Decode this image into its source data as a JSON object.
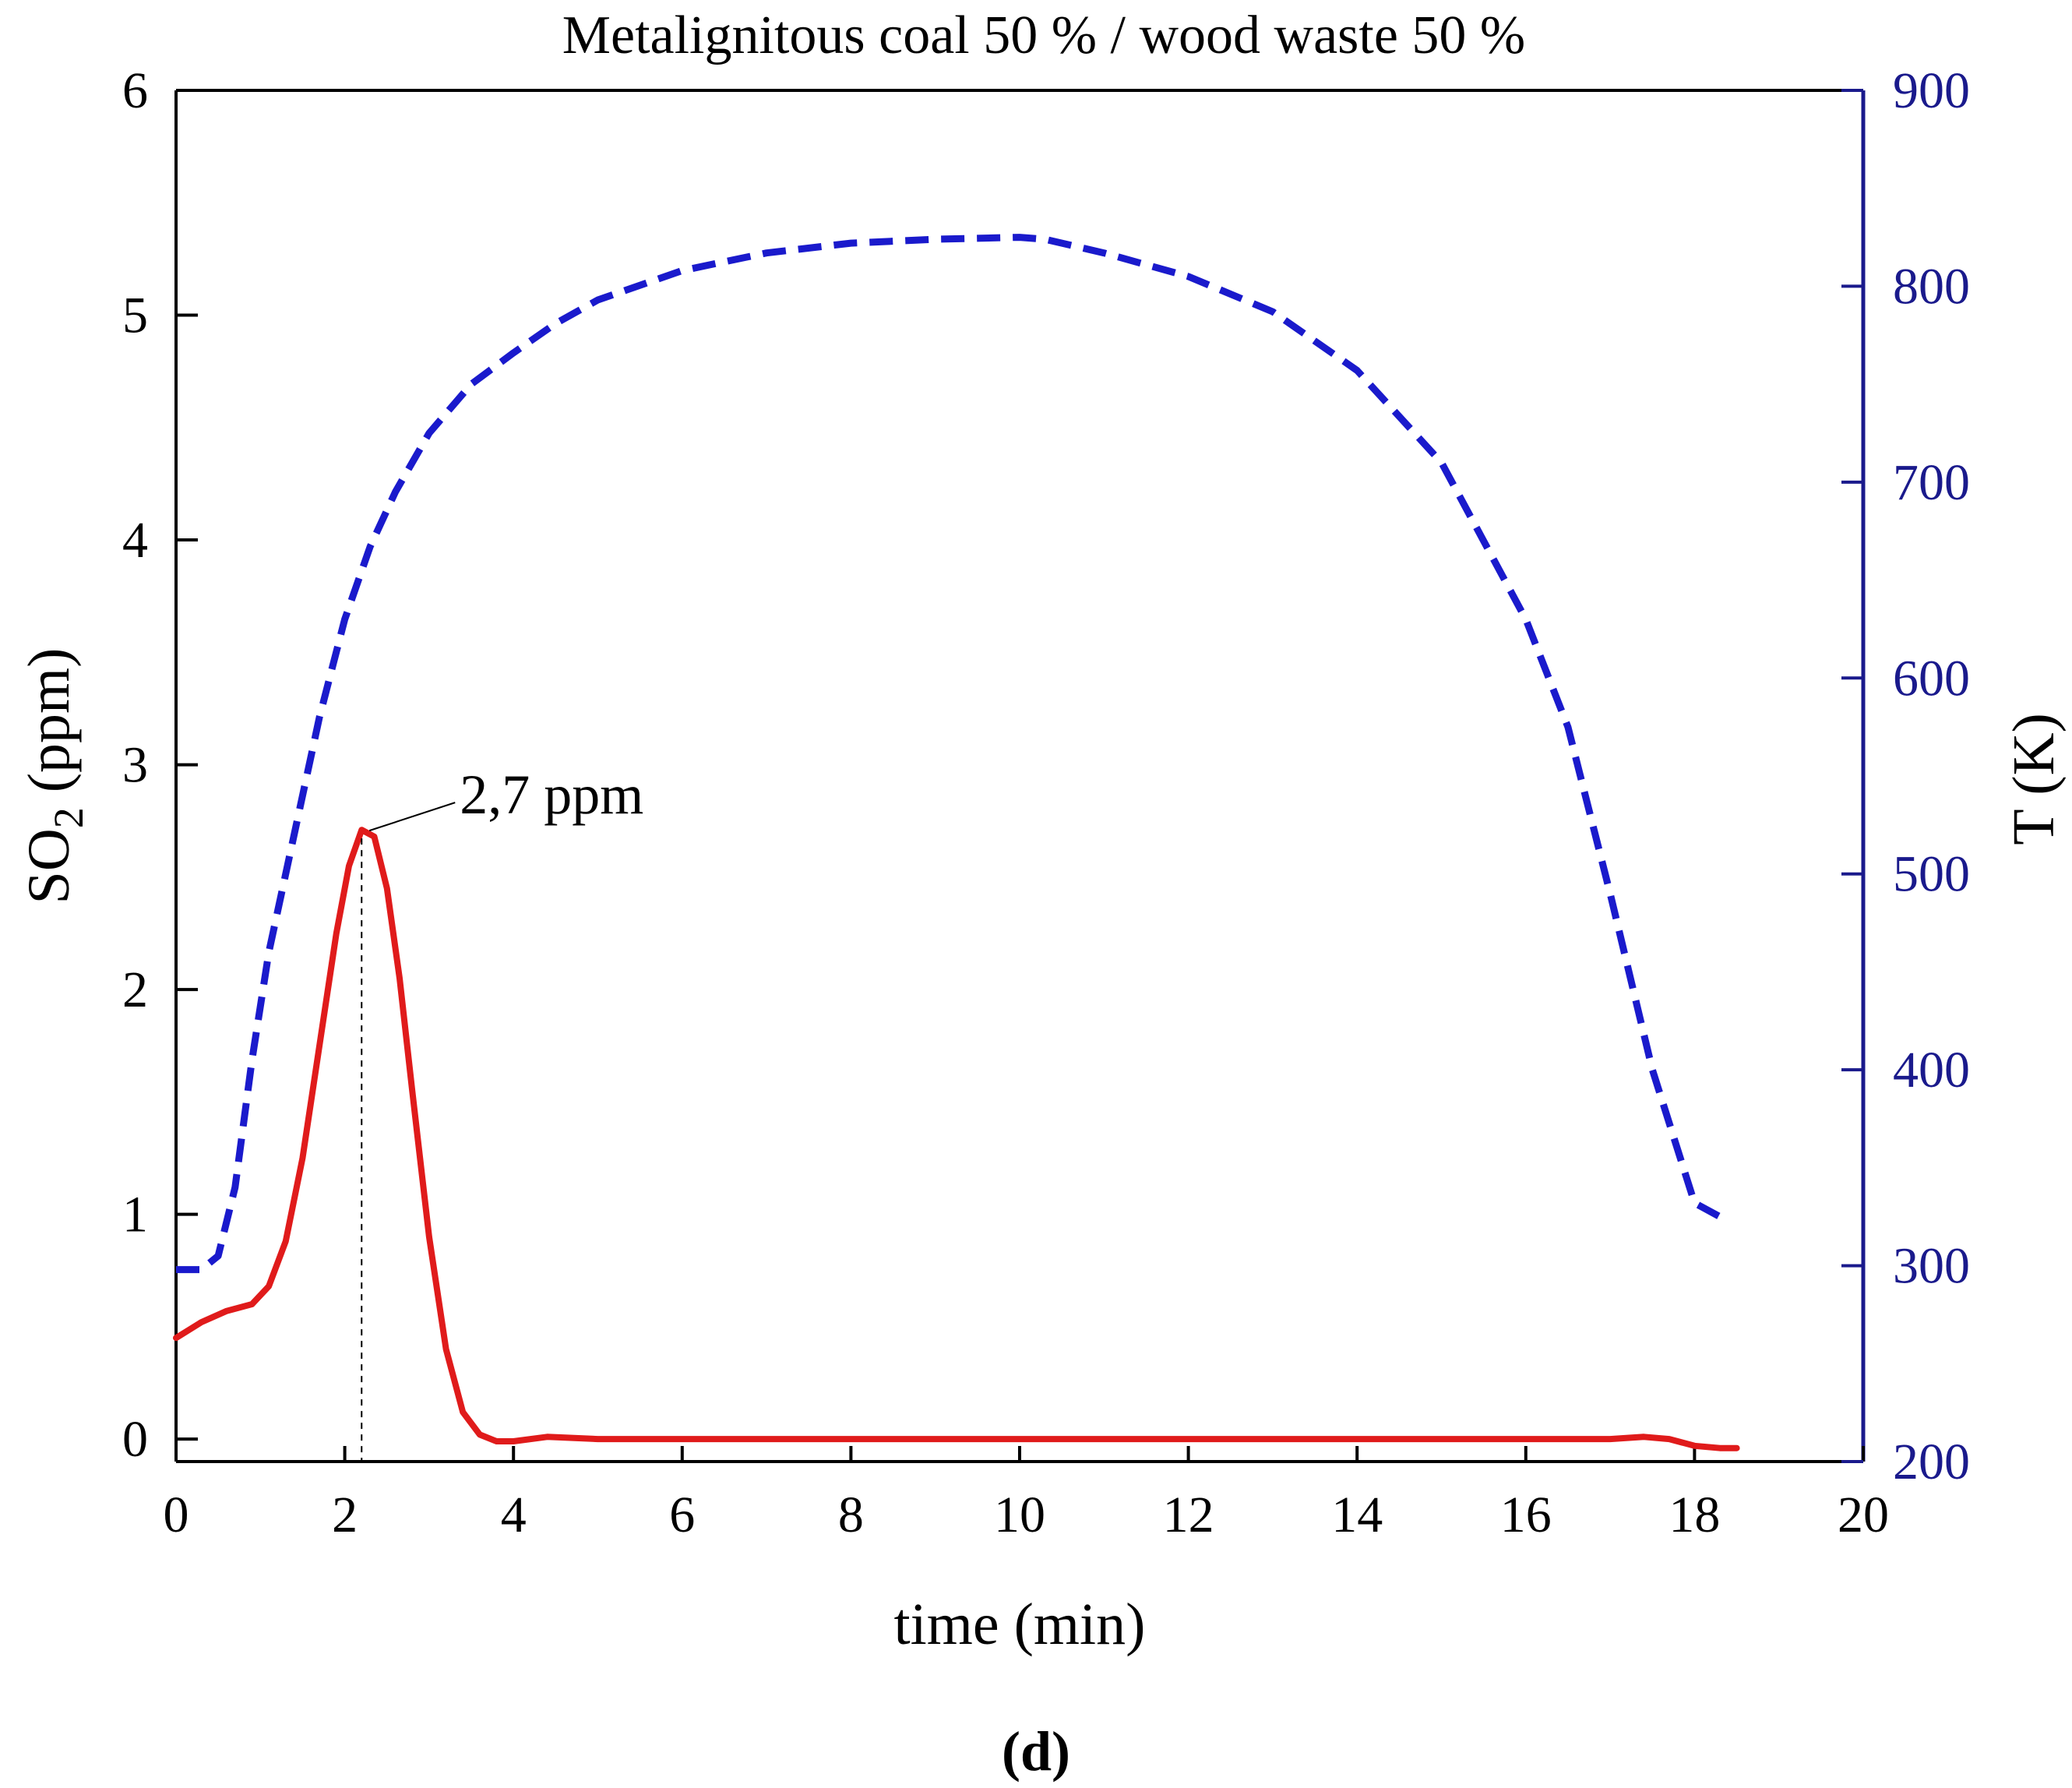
{
  "chart_data": {
    "type": "line",
    "title": "Metalignitous coal 50 % / wood waste 50 %",
    "xlabel": "time (min)",
    "ylabel_left": {
      "base": "SO",
      "sub": "2",
      "rest": " (ppm)"
    },
    "ylabel_right": "T (K)",
    "panel_label": "(d)",
    "xlim": [
      0,
      20
    ],
    "ylim_left": [
      -0.1,
      6
    ],
    "ylim_right": [
      200,
      900
    ],
    "xticks": [
      "0",
      "2",
      "4",
      "6",
      "8",
      "10",
      "12",
      "14",
      "16",
      "18",
      "20"
    ],
    "yticks_left": [
      "0",
      "1",
      "2",
      "3",
      "4",
      "5",
      "6"
    ],
    "yticks_right": [
      "200",
      "300",
      "400",
      "500",
      "600",
      "700",
      "800",
      "900"
    ],
    "grid": false,
    "colors": {
      "so2": "#e01b1b",
      "temperature": "#1a1acc",
      "right_axis": "#1a1a8c"
    },
    "annotation": {
      "text": "2,7 ppm",
      "x": 2.2,
      "y": 2.7
    },
    "series": [
      {
        "axis": "left",
        "style": "solid",
        "x": [
          0,
          0.3,
          0.6,
          0.9,
          1.1,
          1.3,
          1.5,
          1.7,
          1.9,
          2.05,
          2.2,
          2.35,
          2.5,
          2.65,
          2.8,
          3.0,
          3.2,
          3.4,
          3.6,
          3.8,
          4.0,
          4.4,
          5,
          6,
          8,
          10,
          12,
          14,
          16,
          17,
          17.4,
          17.7,
          18.0,
          18.3,
          18.5
        ],
        "y": [
          0.45,
          0.52,
          0.57,
          0.6,
          0.68,
          0.88,
          1.25,
          1.75,
          2.25,
          2.55,
          2.71,
          2.68,
          2.45,
          2.05,
          1.55,
          0.9,
          0.4,
          0.12,
          0.02,
          -0.01,
          -0.01,
          0.01,
          0.0,
          0.0,
          0.0,
          0.0,
          0.0,
          0.0,
          0.0,
          0.0,
          0.01,
          0.0,
          -0.03,
          -0.04,
          -0.04
        ]
      },
      {
        "axis": "right",
        "style": "dashed",
        "x": [
          0,
          0.3,
          0.5,
          0.7,
          0.9,
          1.1,
          1.4,
          1.7,
          2.0,
          2.3,
          2.6,
          3.0,
          3.5,
          4.0,
          4.5,
          5.0,
          6.0,
          7.0,
          8.0,
          9.0,
          10.0,
          10.3,
          11.0,
          12.0,
          13.0,
          14.0,
          15.0,
          16.0,
          16.5,
          17.0,
          17.5,
          18.0,
          18.3
        ],
        "y": [
          298,
          298,
          305,
          340,
          405,
          460,
          520,
          580,
          630,
          667,
          695,
          725,
          750,
          766,
          781,
          793,
          808,
          817,
          822,
          824,
          825,
          824,
          817,
          805,
          787,
          757,
          710,
          630,
          575,
          490,
          400,
          332,
          325
        ]
      }
    ]
  }
}
